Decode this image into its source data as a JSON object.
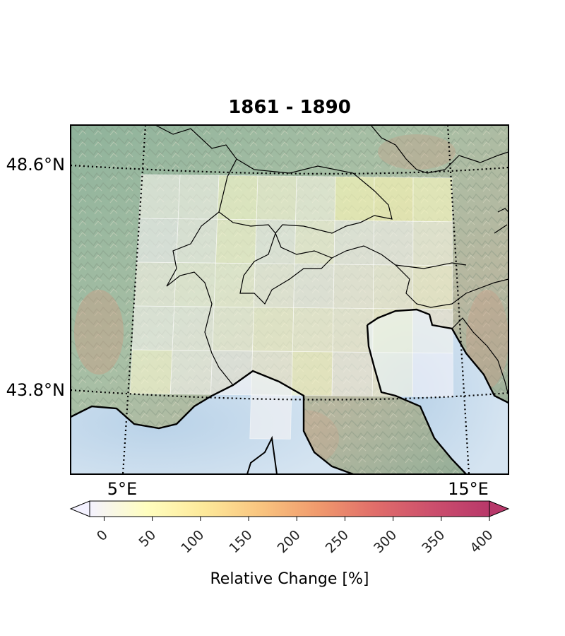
{
  "map": {
    "title": "1861 - 1890",
    "lat_labels": [
      "48.6°N",
      "43.8°N"
    ],
    "lon_labels": [
      "5°E",
      "15°E"
    ]
  },
  "colorbar": {
    "label": "Relative Change [%]",
    "ticks": [
      "0",
      "50",
      "100",
      "150",
      "200",
      "250",
      "300",
      "350",
      "400"
    ],
    "min": -15,
    "max": 400,
    "extend": "both",
    "stops": [
      "#f4f2ff",
      "#fffebf",
      "#fde99a",
      "#f9c47f",
      "#f09a6d",
      "#e06d6a",
      "#cc4f6d",
      "#b8386a"
    ]
  },
  "grid_values": [
    [
      2,
      3,
      30,
      20,
      10,
      50,
      55,
      40
    ],
    [
      -5,
      2,
      25,
      0,
      15,
      0,
      0,
      10
    ],
    [
      5,
      10,
      15,
      5,
      0,
      5,
      10,
      20
    ],
    [
      0,
      2,
      10,
      20,
      15,
      10,
      20,
      0
    ],
    [
      25,
      0,
      -5,
      5,
      30,
      0,
      10,
      -10
    ],
    [
      null,
      null,
      null,
      -5,
      null,
      null,
      null,
      null
    ]
  ],
  "colors": {
    "sea": "#cfe0ef",
    "land": "#9fb9a2",
    "frame": "#000000"
  }
}
